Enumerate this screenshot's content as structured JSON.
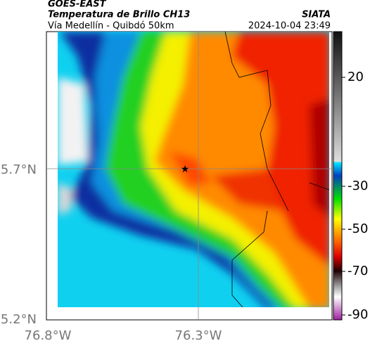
{
  "header": {
    "source": "GOES-EAST",
    "title": "Temperatura de Brillo CH13",
    "subtitle": "Vía Medellín - Quibdó 50km",
    "agency": "SIATA",
    "timestamp": "2024-10-04 23:49"
  },
  "map": {
    "lat_labels": [
      "5.7°N",
      "5.2°N"
    ],
    "lon_labels": [
      "76.8°W",
      "76.3°W"
    ]
  },
  "colorbar": {
    "ticks": [
      20,
      -30,
      -50,
      -70,
      -90
    ]
  }
}
